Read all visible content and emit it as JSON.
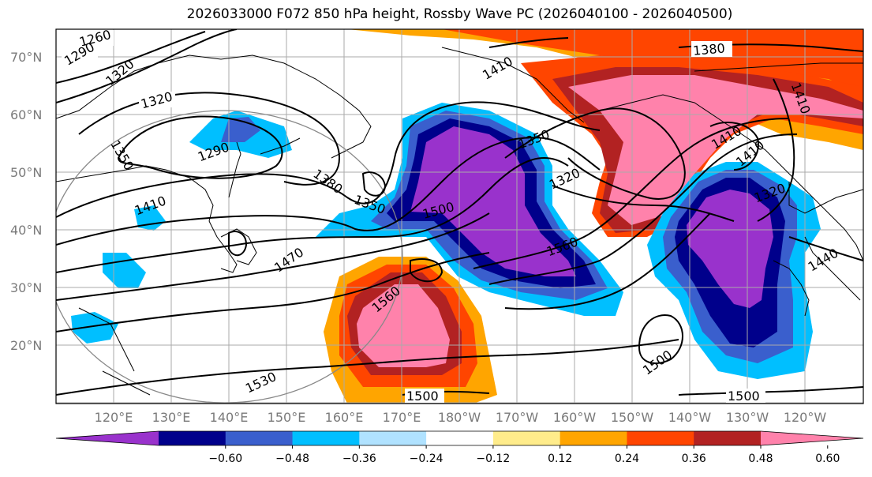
{
  "title": "2026033000 F072 850 hPa height, Rossby Wave PC (2026040100 - 2026040500)",
  "lat_labels": [
    "70°N",
    "60°N",
    "50°N",
    "40°N",
    "30°N",
    "20°N"
  ],
  "lon_labels": [
    "120°E",
    "130°E",
    "140°E",
    "150°E",
    "160°E",
    "170°E",
    "180°W",
    "170°W",
    "160°W",
    "150°W",
    "140°W",
    "130°W",
    "120°W"
  ],
  "colorbar": {
    "ticks": [
      "−0.60",
      "−0.48",
      "−0.36",
      "−0.24",
      "−0.12",
      "0.12",
      "0.24",
      "0.36",
      "0.48",
      "0.60"
    ],
    "colors": [
      "#9932cc",
      "#00008b",
      "#3a5fcd",
      "#00bfff",
      "#b0e2ff",
      "#ffffff",
      "#ffec8b",
      "#ffa500",
      "#ff4500",
      "#b22222",
      "#ff82ab"
    ]
  },
  "contour_labels": [
    "1260",
    "1290",
    "1320",
    "1320",
    "1350",
    "1290",
    "1410",
    "1380",
    "1350",
    "1470",
    "1500",
    "1350",
    "1320",
    "1560",
    "1560",
    "1530",
    "1500",
    "1500",
    "1500",
    "1410",
    "1380",
    "1410",
    "1410",
    "1320",
    "1440",
    "1410"
  ]
}
